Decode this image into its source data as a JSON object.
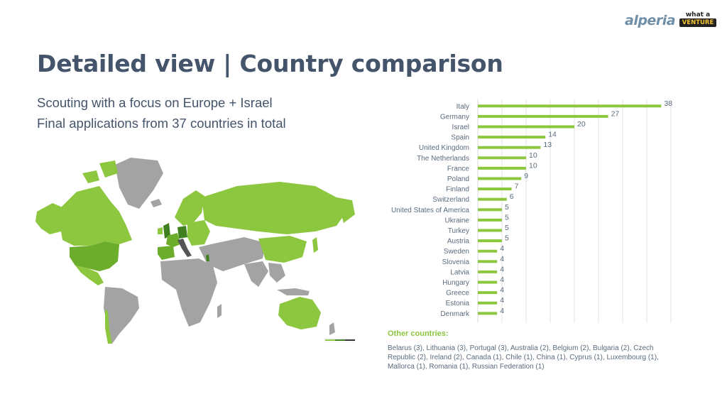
{
  "header": {
    "brand_logo": "alperia",
    "partner_logo_top": "what a",
    "partner_logo_bottom": "VENTURE"
  },
  "title": "Detailed view | Country comparison",
  "subtitle_lines": [
    "Scouting with a focus on Europe + Israel",
    "Final applications from 37 countries in total"
  ],
  "map": {
    "colors": {
      "land": "#a3a3a3",
      "low": "#8dc63f",
      "mid": "#6cae2b",
      "high": "#3f7f1f",
      "top": "#555555"
    }
  },
  "chart_data": {
    "type": "bar",
    "orientation": "horizontal",
    "categories": [
      "Italy",
      "Germany",
      "Israel",
      "Spain",
      "United Kingdom",
      "The Netherlands",
      "France",
      "Poland",
      "Finland",
      "Switzerland",
      "United States of America",
      "Ukraine",
      "Turkey",
      "Austria",
      "Sweden",
      "Slovenia",
      "Latvia",
      "Hungary",
      "Greece",
      "Estonia",
      "Denmark"
    ],
    "values": [
      38,
      27,
      20,
      14,
      13,
      10,
      10,
      9,
      7,
      6,
      5,
      5,
      5,
      5,
      4,
      4,
      4,
      4,
      4,
      4,
      4
    ],
    "xlim": [
      0,
      40
    ],
    "grid": true,
    "data_labels": true,
    "bar_color": "#8dc63f",
    "label_color": "#5a6b7d"
  },
  "other": {
    "title": "Other countries:",
    "text": "Belarus (3), Lithuania (3), Portugal (3), Australia (2), Belgium (2), Bulgaria (2), Czech Republic (2), Ireland (2), Canada (1), Chile (1), China (1), Cyprus (1), Luxembourg (1), Mallorca (1), Romania (1), Russian Federation (1)"
  }
}
